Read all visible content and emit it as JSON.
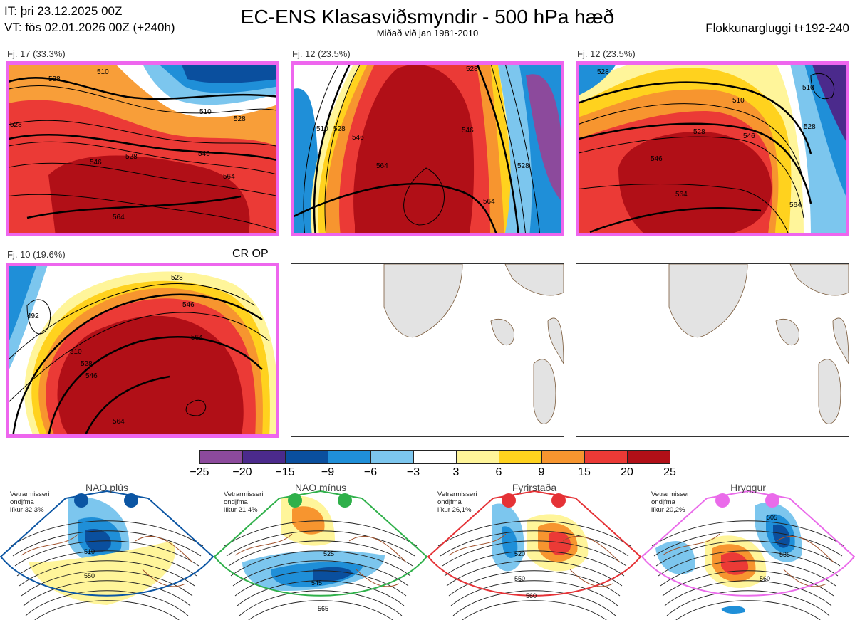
{
  "header": {
    "it": "IT: þri 23.12.2025 00Z",
    "vt": "VT: fös 02.01.2026 00Z  (+240h)",
    "title": "EC-ENS Klasasviðsmyndir - 500 hPa hæð",
    "subtitle": "Miðað við jan 1981-2010",
    "window": "Flokkunargluggi t+192-240"
  },
  "panels": [
    {
      "label": "Fj. 17 (33.3%)",
      "contour_labels": [
        "528",
        "510",
        "528",
        "546",
        "528",
        "546",
        "564",
        "564",
        "528",
        "510"
      ]
    },
    {
      "label": "Fj. 12 (23.5%)",
      "contour_labels": [
        "510",
        "528",
        "546",
        "564",
        "528",
        "564",
        "546",
        "528"
      ]
    },
    {
      "label": "Fj. 12 (23.5%)",
      "contour_labels": [
        "528",
        "510",
        "510",
        "528",
        "546",
        "546",
        "564",
        "564",
        "528"
      ]
    },
    {
      "label": "Fj. 10 (19.6%)",
      "extra": "CR OP",
      "contour_labels": [
        "492",
        "528",
        "546",
        "564",
        "510",
        "528",
        "546",
        "564"
      ]
    }
  ],
  "colorbar": {
    "ticks": [
      "−25",
      "−20",
      "−15",
      "−9",
      "−6",
      "−3",
      "3",
      "6",
      "9",
      "15",
      "20",
      "25"
    ],
    "colors": [
      "#8c4a9c",
      "#4b2a8c",
      "#0a4f9e",
      "#1f8fd8",
      "#7cc6ee",
      "#ffffff",
      "#fff59a",
      "#ffd21e",
      "#f7952f",
      "#eb3a36",
      "#b10f17"
    ]
  },
  "regimes": [
    {
      "name": "NAO plús",
      "note": [
        "Vetrarmisseri",
        "ondjfma",
        "líkur 32,3%"
      ],
      "color": "#0b55a3",
      "labels": [
        "510",
        "550"
      ]
    },
    {
      "name": "NAO mínus",
      "note": [
        "Vetrarmisseri",
        "ondjfma",
        "líkur 21,4%"
      ],
      "color": "#2fb04a",
      "labels": [
        "525",
        "545",
        "565"
      ]
    },
    {
      "name": "Fyrirstaða",
      "note": [
        "Vetrarmisseri",
        "ondjfma",
        "líkur 26,1%"
      ],
      "color": "#e53236",
      "labels": [
        "520",
        "550",
        "560"
      ]
    },
    {
      "name": "Hryggur",
      "note": [
        "Vetrarmisseri",
        "ondjfma",
        "líkur 20,2%"
      ],
      "color": "#ea6bea",
      "labels": [
        "505",
        "535",
        "560"
      ]
    }
  ]
}
